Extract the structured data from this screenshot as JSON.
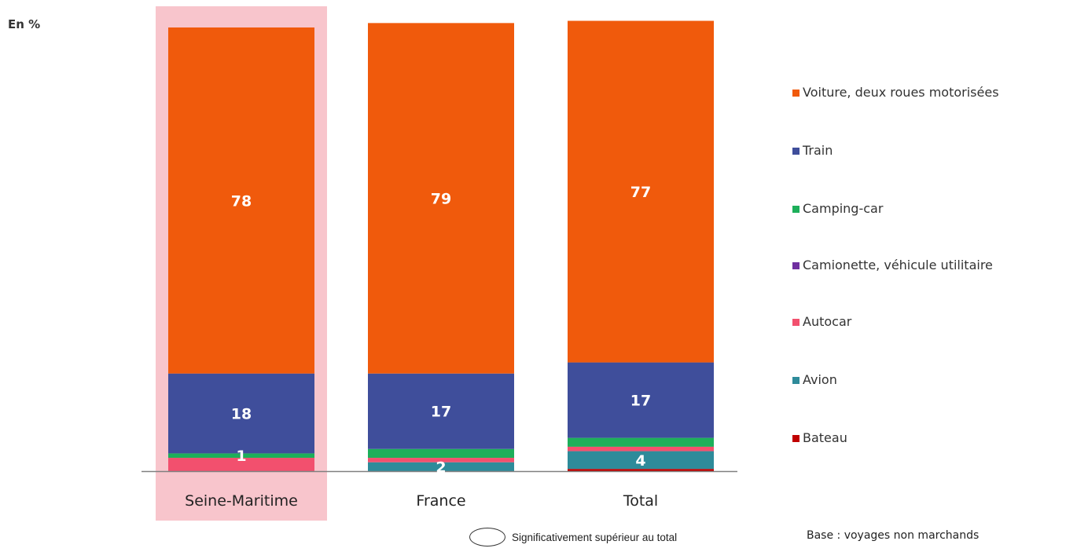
{
  "unit_label": "En %",
  "footer": {
    "significance_note": "Significativement supérieur au total",
    "base_note": "Base : voyages non marchands"
  },
  "highlight_color": "#f8c5cc",
  "chart_data": {
    "type": "bar",
    "stacked": true,
    "categories": [
      "Seine-Maritime",
      "France",
      "Total"
    ],
    "highlighted_category": "Seine-Maritime",
    "ylim": [
      0,
      100
    ],
    "series": [
      {
        "name": "Bateau",
        "color": "#c00000",
        "values": [
          0,
          0,
          0.5
        ]
      },
      {
        "name": "Avion",
        "color": "#2e8b9a",
        "values": [
          0,
          2,
          4
        ]
      },
      {
        "name": "Autocar",
        "color": "#f2506e",
        "values": [
          3,
          1,
          1
        ]
      },
      {
        "name": "Camionette, véhicule utilitaire",
        "color": "#7030a0",
        "values": [
          0,
          0,
          0
        ]
      },
      {
        "name": "Camping-car",
        "color": "#1daf5a",
        "values": [
          1,
          2,
          2
        ]
      },
      {
        "name": "Train",
        "color": "#3f4e9b",
        "values": [
          18,
          17,
          17
        ]
      },
      {
        "name": "Voiture, deux roues motorisées",
        "color": "#f05a0c",
        "values": [
          78,
          79,
          77
        ]
      }
    ],
    "data_labels": [
      [
        "",
        "",
        "",
        "",
        "1",
        "18",
        "78"
      ],
      [
        "",
        "2",
        "",
        "",
        "",
        "17",
        "79"
      ],
      [
        "",
        "4",
        "",
        "",
        "",
        "17",
        "77"
      ]
    ],
    "legend_order": [
      "Voiture, deux roues motorisées",
      "Train",
      "Camping-car",
      "Camionette, véhicule utilitaire",
      "Autocar",
      "Avion",
      "Bateau"
    ],
    "legend_position": "right"
  }
}
